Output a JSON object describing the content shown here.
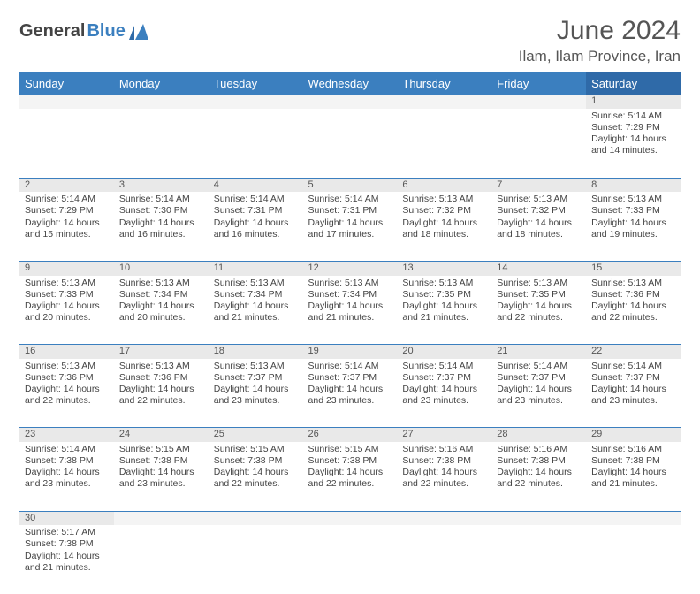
{
  "logo": {
    "dark": "General",
    "blue": "Blue"
  },
  "title": "June 2024",
  "location": "Ilam, Ilam Province, Iran",
  "colors": {
    "header_bg": "#3b7fbf",
    "header_bg_sat": "#2f6aa8",
    "daynum_bg": "#e9e9e9",
    "border": "#3b7fbf",
    "text": "#444444"
  },
  "weekdays": [
    "Sunday",
    "Monday",
    "Tuesday",
    "Wednesday",
    "Thursday",
    "Friday",
    "Saturday"
  ],
  "weeks": [
    [
      null,
      null,
      null,
      null,
      null,
      null,
      {
        "n": "1",
        "sr": "5:14 AM",
        "ss": "7:29 PM",
        "dl": "14 hours and 14 minutes."
      }
    ],
    [
      {
        "n": "2",
        "sr": "5:14 AM",
        "ss": "7:29 PM",
        "dl": "14 hours and 15 minutes."
      },
      {
        "n": "3",
        "sr": "5:14 AM",
        "ss": "7:30 PM",
        "dl": "14 hours and 16 minutes."
      },
      {
        "n": "4",
        "sr": "5:14 AM",
        "ss": "7:31 PM",
        "dl": "14 hours and 16 minutes."
      },
      {
        "n": "5",
        "sr": "5:14 AM",
        "ss": "7:31 PM",
        "dl": "14 hours and 17 minutes."
      },
      {
        "n": "6",
        "sr": "5:13 AM",
        "ss": "7:32 PM",
        "dl": "14 hours and 18 minutes."
      },
      {
        "n": "7",
        "sr": "5:13 AM",
        "ss": "7:32 PM",
        "dl": "14 hours and 18 minutes."
      },
      {
        "n": "8",
        "sr": "5:13 AM",
        "ss": "7:33 PM",
        "dl": "14 hours and 19 minutes."
      }
    ],
    [
      {
        "n": "9",
        "sr": "5:13 AM",
        "ss": "7:33 PM",
        "dl": "14 hours and 20 minutes."
      },
      {
        "n": "10",
        "sr": "5:13 AM",
        "ss": "7:34 PM",
        "dl": "14 hours and 20 minutes."
      },
      {
        "n": "11",
        "sr": "5:13 AM",
        "ss": "7:34 PM",
        "dl": "14 hours and 21 minutes."
      },
      {
        "n": "12",
        "sr": "5:13 AM",
        "ss": "7:34 PM",
        "dl": "14 hours and 21 minutes."
      },
      {
        "n": "13",
        "sr": "5:13 AM",
        "ss": "7:35 PM",
        "dl": "14 hours and 21 minutes."
      },
      {
        "n": "14",
        "sr": "5:13 AM",
        "ss": "7:35 PM",
        "dl": "14 hours and 22 minutes."
      },
      {
        "n": "15",
        "sr": "5:13 AM",
        "ss": "7:36 PM",
        "dl": "14 hours and 22 minutes."
      }
    ],
    [
      {
        "n": "16",
        "sr": "5:13 AM",
        "ss": "7:36 PM",
        "dl": "14 hours and 22 minutes."
      },
      {
        "n": "17",
        "sr": "5:13 AM",
        "ss": "7:36 PM",
        "dl": "14 hours and 22 minutes."
      },
      {
        "n": "18",
        "sr": "5:13 AM",
        "ss": "7:37 PM",
        "dl": "14 hours and 23 minutes."
      },
      {
        "n": "19",
        "sr": "5:14 AM",
        "ss": "7:37 PM",
        "dl": "14 hours and 23 minutes."
      },
      {
        "n": "20",
        "sr": "5:14 AM",
        "ss": "7:37 PM",
        "dl": "14 hours and 23 minutes."
      },
      {
        "n": "21",
        "sr": "5:14 AM",
        "ss": "7:37 PM",
        "dl": "14 hours and 23 minutes."
      },
      {
        "n": "22",
        "sr": "5:14 AM",
        "ss": "7:37 PM",
        "dl": "14 hours and 23 minutes."
      }
    ],
    [
      {
        "n": "23",
        "sr": "5:14 AM",
        "ss": "7:38 PM",
        "dl": "14 hours and 23 minutes."
      },
      {
        "n": "24",
        "sr": "5:15 AM",
        "ss": "7:38 PM",
        "dl": "14 hours and 23 minutes."
      },
      {
        "n": "25",
        "sr": "5:15 AM",
        "ss": "7:38 PM",
        "dl": "14 hours and 22 minutes."
      },
      {
        "n": "26",
        "sr": "5:15 AM",
        "ss": "7:38 PM",
        "dl": "14 hours and 22 minutes."
      },
      {
        "n": "27",
        "sr": "5:16 AM",
        "ss": "7:38 PM",
        "dl": "14 hours and 22 minutes."
      },
      {
        "n": "28",
        "sr": "5:16 AM",
        "ss": "7:38 PM",
        "dl": "14 hours and 22 minutes."
      },
      {
        "n": "29",
        "sr": "5:16 AM",
        "ss": "7:38 PM",
        "dl": "14 hours and 21 minutes."
      }
    ],
    [
      {
        "n": "30",
        "sr": "5:17 AM",
        "ss": "7:38 PM",
        "dl": "14 hours and 21 minutes."
      },
      null,
      null,
      null,
      null,
      null,
      null
    ]
  ],
  "labels": {
    "sunrise": "Sunrise:",
    "sunset": "Sunset:",
    "daylight": "Daylight:"
  }
}
